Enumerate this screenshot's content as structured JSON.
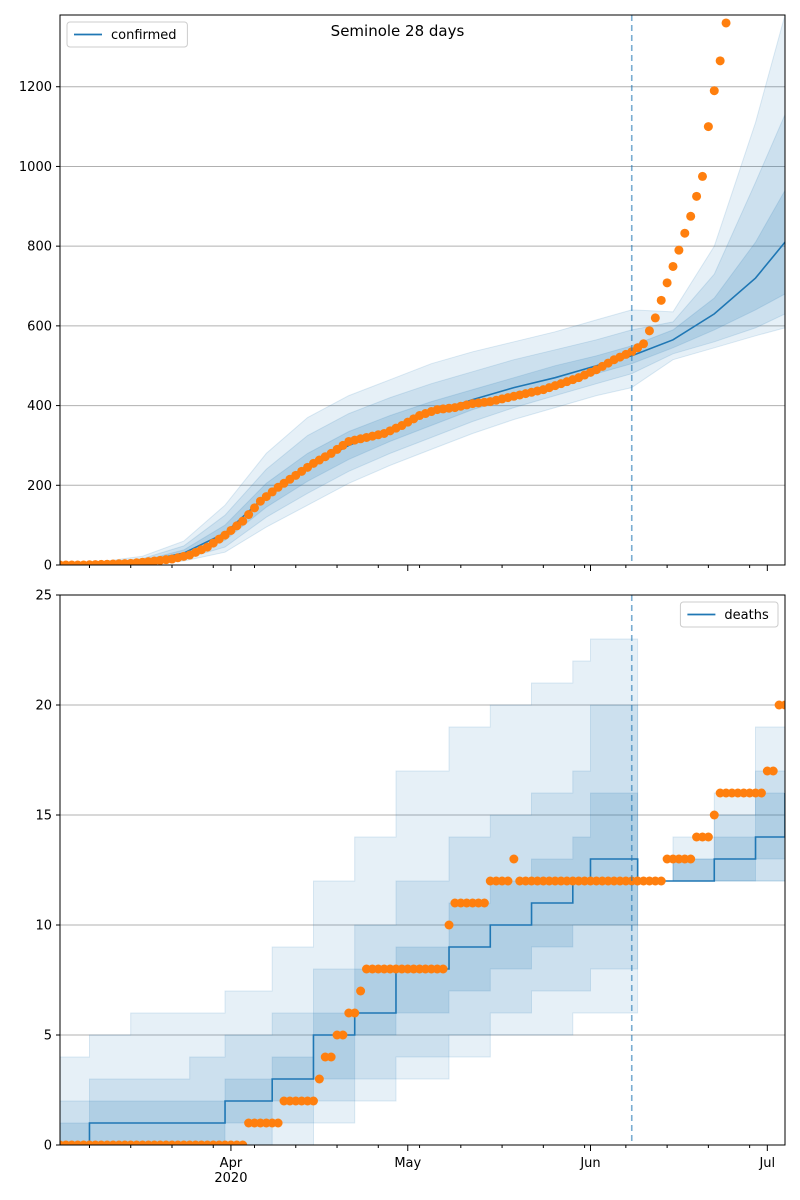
{
  "colors": {
    "band": "#1f77b4",
    "line": "#1f77b4",
    "dots": "#ff7f0e",
    "grid": "#b0b0b0",
    "axis": "#000000"
  },
  "chart_data": [
    {
      "type": "line",
      "title": "Seminole 28 days",
      "xlabel": "",
      "ylabel": "",
      "legend": "top-left",
      "grid": "horizontal",
      "x_range": [
        "2020-03-03",
        "2020-07-04"
      ],
      "ylim": [
        0,
        1380
      ],
      "yticks": [
        0,
        200,
        400,
        600,
        800,
        1000,
        1200
      ],
      "forecast_start": "2020-06-08",
      "model_points": [
        {
          "date": "2020-03-03",
          "median": 0,
          "b25": 0,
          "b75": 0,
          "b10": 0,
          "b90": 0,
          "b2": 0,
          "b98": 0
        },
        {
          "date": "2020-03-10",
          "median": 2,
          "b25": 1,
          "b75": 3,
          "b10": 0,
          "b90": 5,
          "b2": 0,
          "b98": 8
        },
        {
          "date": "2020-03-17",
          "median": 8,
          "b25": 5,
          "b75": 11,
          "b10": 3,
          "b90": 16,
          "b2": 1,
          "b98": 22
        },
        {
          "date": "2020-03-24",
          "median": 30,
          "b25": 22,
          "b75": 38,
          "b10": 15,
          "b90": 48,
          "b2": 10,
          "b98": 60
        },
        {
          "date": "2020-03-31",
          "median": 80,
          "b25": 62,
          "b75": 100,
          "b10": 45,
          "b90": 125,
          "b2": 32,
          "b98": 150
        },
        {
          "date": "2020-04-07",
          "median": 175,
          "b25": 145,
          "b75": 205,
          "b10": 120,
          "b90": 240,
          "b2": 95,
          "b98": 280
        },
        {
          "date": "2020-04-14",
          "median": 245,
          "b25": 210,
          "b75": 280,
          "b10": 180,
          "b90": 325,
          "b2": 150,
          "b98": 370
        },
        {
          "date": "2020-04-21",
          "median": 300,
          "b25": 265,
          "b75": 335,
          "b10": 235,
          "b90": 380,
          "b2": 205,
          "b98": 425
        },
        {
          "date": "2020-04-28",
          "median": 340,
          "b25": 310,
          "b75": 375,
          "b10": 280,
          "b90": 420,
          "b2": 250,
          "b98": 465
        },
        {
          "date": "2020-05-05",
          "median": 380,
          "b25": 350,
          "b75": 410,
          "b10": 320,
          "b90": 455,
          "b2": 290,
          "b98": 505
        },
        {
          "date": "2020-05-12",
          "median": 415,
          "b25": 390,
          "b75": 440,
          "b10": 360,
          "b90": 485,
          "b2": 330,
          "b98": 535
        },
        {
          "date": "2020-05-19",
          "median": 445,
          "b25": 420,
          "b75": 470,
          "b10": 395,
          "b90": 515,
          "b2": 365,
          "b98": 560
        },
        {
          "date": "2020-05-26",
          "median": 470,
          "b25": 450,
          "b75": 500,
          "b10": 425,
          "b90": 540,
          "b2": 395,
          "b98": 585
        },
        {
          "date": "2020-06-02",
          "median": 500,
          "b25": 480,
          "b75": 525,
          "b10": 455,
          "b90": 565,
          "b2": 425,
          "b98": 615
        },
        {
          "date": "2020-06-08",
          "median": 525,
          "b25": 505,
          "b75": 550,
          "b10": 480,
          "b90": 590,
          "b2": 445,
          "b98": 640
        },
        {
          "date": "2020-06-15",
          "median": 565,
          "b25": 545,
          "b75": 590,
          "b10": 530,
          "b90": 610,
          "b2": 515,
          "b98": 635
        },
        {
          "date": "2020-06-22",
          "median": 630,
          "b25": 590,
          "b75": 670,
          "b10": 560,
          "b90": 730,
          "b2": 545,
          "b98": 800
        },
        {
          "date": "2020-06-29",
          "median": 720,
          "b25": 640,
          "b75": 810,
          "b10": 595,
          "b90": 960,
          "b2": 575,
          "b98": 1110
        },
        {
          "date": "2020-07-04",
          "median": 810,
          "b25": 680,
          "b75": 940,
          "b10": 630,
          "b90": 1130,
          "b2": 595,
          "b98": 1380
        }
      ],
      "observed_points": [
        {
          "date": "2020-03-03",
          "v": 0
        },
        {
          "date": "2020-03-07",
          "v": 0
        },
        {
          "date": "2020-03-11",
          "v": 2
        },
        {
          "date": "2020-03-15",
          "v": 4
        },
        {
          "date": "2020-03-19",
          "v": 10
        },
        {
          "date": "2020-03-22",
          "v": 15
        },
        {
          "date": "2020-03-25",
          "v": 25
        },
        {
          "date": "2020-03-28",
          "v": 45
        },
        {
          "date": "2020-03-31",
          "v": 75
        },
        {
          "date": "2020-04-03",
          "v": 110
        },
        {
          "date": "2020-04-06",
          "v": 160
        },
        {
          "date": "2020-04-09",
          "v": 195
        },
        {
          "date": "2020-04-12",
          "v": 225
        },
        {
          "date": "2020-04-15",
          "v": 255
        },
        {
          "date": "2020-04-18",
          "v": 280
        },
        {
          "date": "2020-04-21",
          "v": 310
        },
        {
          "date": "2020-04-24",
          "v": 320
        },
        {
          "date": "2020-04-27",
          "v": 330
        },
        {
          "date": "2020-04-30",
          "v": 350
        },
        {
          "date": "2020-05-03",
          "v": 375
        },
        {
          "date": "2020-05-06",
          "v": 390
        },
        {
          "date": "2020-05-09",
          "v": 395
        },
        {
          "date": "2020-05-12",
          "v": 405
        },
        {
          "date": "2020-05-15",
          "v": 410
        },
        {
          "date": "2020-05-18",
          "v": 420
        },
        {
          "date": "2020-05-21",
          "v": 430
        },
        {
          "date": "2020-05-24",
          "v": 440
        },
        {
          "date": "2020-05-27",
          "v": 455
        },
        {
          "date": "2020-05-30",
          "v": 470
        },
        {
          "date": "2020-06-02",
          "v": 490
        },
        {
          "date": "2020-06-05",
          "v": 515
        },
        {
          "date": "2020-06-08",
          "v": 535
        },
        {
          "date": "2020-06-10",
          "v": 555
        },
        {
          "date": "2020-06-12",
          "v": 620
        },
        {
          "date": "2020-06-14",
          "v": 708
        },
        {
          "date": "2020-06-16",
          "v": 790
        },
        {
          "date": "2020-06-18",
          "v": 875
        },
        {
          "date": "2020-06-20",
          "v": 975
        },
        {
          "date": "2020-06-21",
          "v": 1100
        },
        {
          "date": "2020-06-22",
          "v": 1190
        },
        {
          "date": "2020-06-23",
          "v": 1265
        },
        {
          "date": "2020-06-24",
          "v": 1360
        }
      ],
      "series": [
        {
          "name": "confirmed",
          "color": "#1f77b4"
        }
      ]
    },
    {
      "type": "line",
      "title": "",
      "xlabel": "",
      "ylabel": "",
      "legend": "top-right",
      "grid": "horizontal",
      "x_range": [
        "2020-03-03",
        "2020-07-04"
      ],
      "ylim": [
        0,
        25
      ],
      "yticks": [
        0,
        5,
        10,
        15,
        20,
        25
      ],
      "xticks": [
        {
          "date": "2020-04-01",
          "label": "Apr"
        },
        {
          "date": "2020-05-01",
          "label": "May"
        },
        {
          "date": "2020-06-01",
          "label": "Jun"
        },
        {
          "date": "2020-07-01",
          "label": "Jul"
        }
      ],
      "year_label": "2020",
      "forecast_start": "2020-06-08",
      "model_points": [
        {
          "date": "2020-03-03",
          "median": 0,
          "b25": 0,
          "b75": 1,
          "b10": 0,
          "b90": 2,
          "b2": 0,
          "b98": 4
        },
        {
          "date": "2020-03-08",
          "median": 1,
          "b25": 0,
          "b75": 2,
          "b10": 0,
          "b90": 3,
          "b2": 0,
          "b98": 5
        },
        {
          "date": "2020-03-15",
          "median": 1,
          "b25": 0,
          "b75": 2,
          "b10": 0,
          "b90": 3,
          "b2": 0,
          "b98": 6
        },
        {
          "date": "2020-03-25",
          "median": 1,
          "b25": 0,
          "b75": 2,
          "b10": 0,
          "b90": 4,
          "b2": 0,
          "b98": 6
        },
        {
          "date": "2020-03-31",
          "median": 2,
          "b25": 1,
          "b75": 3,
          "b10": 0,
          "b90": 5,
          "b2": 0,
          "b98": 7
        },
        {
          "date": "2020-04-08",
          "median": 3,
          "b25": 2,
          "b75": 4,
          "b10": 1,
          "b90": 6,
          "b2": 0,
          "b98": 9
        },
        {
          "date": "2020-04-15",
          "median": 5,
          "b25": 3,
          "b75": 6,
          "b10": 2,
          "b90": 8,
          "b2": 1,
          "b98": 12
        },
        {
          "date": "2020-04-22",
          "median": 6,
          "b25": 5,
          "b75": 8,
          "b10": 3,
          "b90": 10,
          "b2": 2,
          "b98": 14
        },
        {
          "date": "2020-04-29",
          "median": 8,
          "b25": 6,
          "b75": 9,
          "b10": 4,
          "b90": 12,
          "b2": 3,
          "b98": 17
        },
        {
          "date": "2020-05-08",
          "median": 9,
          "b25": 7,
          "b75": 11,
          "b10": 5,
          "b90": 14,
          "b2": 4,
          "b98": 19
        },
        {
          "date": "2020-05-15",
          "median": 10,
          "b25": 8,
          "b75": 12,
          "b10": 6,
          "b90": 15,
          "b2": 5,
          "b98": 20
        },
        {
          "date": "2020-05-22",
          "median": 11,
          "b25": 9,
          "b75": 13,
          "b10": 7,
          "b90": 16,
          "b2": 5,
          "b98": 21
        },
        {
          "date": "2020-05-29",
          "median": 12,
          "b25": 10,
          "b75": 14,
          "b10": 7,
          "b90": 17,
          "b2": 6,
          "b98": 22
        },
        {
          "date": "2020-06-01",
          "median": 13,
          "b25": 10,
          "b75": 16,
          "b10": 8,
          "b90": 20,
          "b2": 6,
          "b98": 23
        },
        {
          "date": "2020-06-08",
          "median": 13,
          "b25": 10,
          "b75": 16,
          "b10": 8,
          "b90": 20,
          "b2": 6,
          "b98": 23
        },
        {
          "date": "2020-06-09",
          "median": 12,
          "b25": 12,
          "b75": 12,
          "b10": 12,
          "b90": 12,
          "b2": 12,
          "b98": 12
        },
        {
          "date": "2020-06-15",
          "median": 12,
          "b25": 12,
          "b75": 13,
          "b10": 12,
          "b90": 13,
          "b2": 12,
          "b98": 14
        },
        {
          "date": "2020-06-22",
          "median": 13,
          "b25": 12,
          "b75": 14,
          "b10": 12,
          "b90": 15,
          "b2": 12,
          "b98": 16
        },
        {
          "date": "2020-06-29",
          "median": 14,
          "b25": 13,
          "b75": 16,
          "b10": 12,
          "b90": 17,
          "b2": 12,
          "b98": 19
        },
        {
          "date": "2020-07-04",
          "median": 16,
          "b25": 14,
          "b75": 18,
          "b10": 13,
          "b90": 21,
          "b2": 12,
          "b98": 25
        }
      ],
      "observed_points": [
        {
          "date": "2020-03-03",
          "v": 0
        },
        {
          "date": "2020-03-10",
          "v": 0
        },
        {
          "date": "2020-03-20",
          "v": 0
        },
        {
          "date": "2020-03-30",
          "v": 0
        },
        {
          "date": "2020-04-03",
          "v": 0
        },
        {
          "date": "2020-04-04",
          "v": 1
        },
        {
          "date": "2020-04-08",
          "v": 1
        },
        {
          "date": "2020-04-10",
          "v": 2
        },
        {
          "date": "2020-04-15",
          "v": 2
        },
        {
          "date": "2020-04-16",
          "v": 3
        },
        {
          "date": "2020-04-17",
          "v": 4
        },
        {
          "date": "2020-04-19",
          "v": 5
        },
        {
          "date": "2020-04-21",
          "v": 6
        },
        {
          "date": "2020-04-23",
          "v": 7
        },
        {
          "date": "2020-04-24",
          "v": 8
        },
        {
          "date": "2020-05-07",
          "v": 8
        },
        {
          "date": "2020-05-08",
          "v": 10
        },
        {
          "date": "2020-05-09",
          "v": 11
        },
        {
          "date": "2020-05-14",
          "v": 11
        },
        {
          "date": "2020-05-15",
          "v": 12
        },
        {
          "date": "2020-05-18",
          "v": 12
        },
        {
          "date": "2020-05-19",
          "v": 13
        },
        {
          "date": "2020-05-20",
          "v": 12
        },
        {
          "date": "2020-06-13",
          "v": 12
        },
        {
          "date": "2020-06-14",
          "v": 13
        },
        {
          "date": "2020-06-18",
          "v": 13
        },
        {
          "date": "2020-06-19",
          "v": 14
        },
        {
          "date": "2020-06-21",
          "v": 14
        },
        {
          "date": "2020-06-22",
          "v": 15
        },
        {
          "date": "2020-06-23",
          "v": 16
        },
        {
          "date": "2020-06-30",
          "v": 16
        },
        {
          "date": "2020-07-01",
          "v": 17
        },
        {
          "date": "2020-07-02",
          "v": 17
        },
        {
          "date": "2020-07-03",
          "v": 20
        },
        {
          "date": "2020-07-04",
          "v": 20
        }
      ],
      "series": [
        {
          "name": "deaths",
          "color": "#1f77b4"
        }
      ]
    }
  ]
}
